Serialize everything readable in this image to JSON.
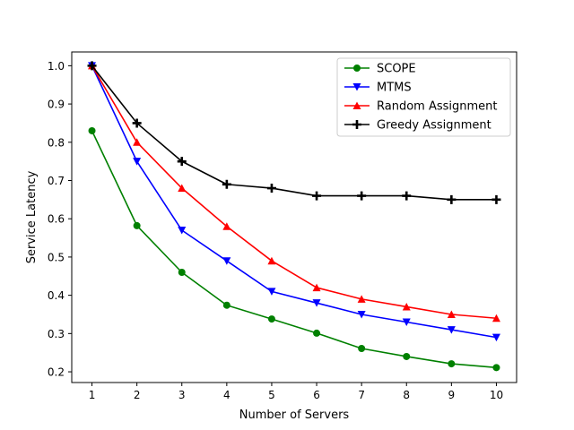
{
  "chart_data": {
    "type": "line",
    "title": "",
    "xlabel": "Number of Servers",
    "ylabel": "Service Latency",
    "x": [
      1,
      2,
      3,
      4,
      5,
      6,
      7,
      8,
      9,
      10
    ],
    "xlim": [
      0.55,
      10.45
    ],
    "ylim": [
      0.172,
      1.036
    ],
    "xticks": [
      1,
      2,
      3,
      4,
      5,
      6,
      7,
      8,
      9,
      10
    ],
    "yticks": [
      0.2,
      0.3,
      0.4,
      0.5,
      0.6,
      0.7,
      0.8,
      0.9,
      1.0
    ],
    "ytick_labels": [
      "0.2",
      "0.3",
      "0.4",
      "0.5",
      "0.6",
      "0.7",
      "0.8",
      "0.9",
      "1.0"
    ],
    "grid": false,
    "legend_position": "upper right",
    "series": [
      {
        "name": "SCOPE",
        "color": "#008000",
        "marker": "circle",
        "values": [
          0.83,
          0.582,
          0.46,
          0.374,
          0.338,
          0.301,
          0.261,
          0.24,
          0.221,
          0.211
        ]
      },
      {
        "name": "MTMS",
        "color": "#0000ff",
        "marker": "triangle-down",
        "values": [
          1.0,
          0.75,
          0.57,
          0.49,
          0.41,
          0.38,
          0.35,
          0.33,
          0.31,
          0.29
        ]
      },
      {
        "name": "Random Assignment",
        "color": "#ff0000",
        "marker": "triangle-up",
        "values": [
          1.0,
          0.8,
          0.68,
          0.58,
          0.49,
          0.42,
          0.39,
          0.37,
          0.35,
          0.34
        ]
      },
      {
        "name": "Greedy Assignment",
        "color": "#000000",
        "marker": "plus",
        "values": [
          1.0,
          0.85,
          0.75,
          0.69,
          0.68,
          0.66,
          0.66,
          0.66,
          0.65,
          0.65
        ]
      }
    ]
  }
}
